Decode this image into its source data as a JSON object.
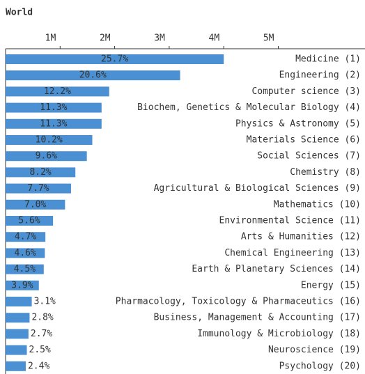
{
  "chart_data": {
    "type": "barh",
    "title": "World",
    "categories": [
      "Medicine (1)",
      "Engineering (2)",
      "Computer science (3)",
      "Biochem, Genetics & Molecular Biology (4)",
      "Physics & Astronomy (5)",
      "Materials Science (6)",
      "Social Sciences (7)",
      "Chemistry (8)",
      "Agricultural & Biological Sciences (9)",
      "Mathematics (10)",
      "Environmental Science (11)",
      "Arts & Humanities (12)",
      "Chemical Engineering (13)",
      "Earth & Planetary Sciences (14)",
      "Energy (15)",
      "Pharmacology, Toxicology & Pharmaceutics (16)",
      "Business, Management & Accounting (17)",
      "Immunology & Microbiology (18)",
      "Neuroscience (19)",
      "Psychology (20)"
    ],
    "category_colors": [
      "#666666",
      "#d7191c",
      "#666666",
      "#666666",
      "#3a9ad9",
      "#666666",
      "#a23c9b",
      "#666666",
      "#666666",
      "#e8961e",
      "#1aa89c",
      "#666666",
      "#e83e8c",
      "#666666",
      "#1b63a8",
      "#666666",
      "#666666",
      "#666666",
      "#f0c27b",
      "#2aa5d8"
    ],
    "values": [
      4.0,
      3.2,
      1.9,
      1.76,
      1.76,
      1.59,
      1.49,
      1.28,
      1.2,
      1.09,
      0.87,
      0.73,
      0.72,
      0.7,
      0.61,
      0.48,
      0.44,
      0.42,
      0.39,
      0.37
    ],
    "value_labels": [
      "25.7%",
      "20.6%",
      "12.2%",
      "11.3%",
      "11.3%",
      "10.2%",
      "9.6%",
      "8.2%",
      "7.7%",
      "7.0%",
      "5.6%",
      "4.7%",
      "4.6%",
      "4.5%",
      "3.9%",
      "3.1%",
      "2.8%",
      "2.7%",
      "2.5%",
      "2.4%"
    ],
    "color": "#4a90d2",
    "xlim": [
      0,
      6.59
    ],
    "xticks": [
      {
        "value": 1,
        "label": "1M"
      },
      {
        "value": 2,
        "label": "2M"
      },
      {
        "value": 3,
        "label": "3M"
      },
      {
        "value": 4,
        "label": "4M"
      },
      {
        "value": 5,
        "label": "5M"
      }
    ]
  }
}
